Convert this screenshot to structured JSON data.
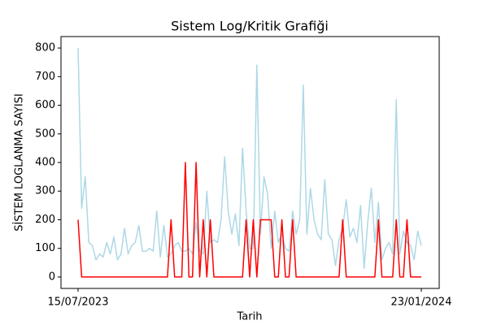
{
  "chart_data": {
    "type": "line",
    "title": "Sistem Log/Kritik Grafiği",
    "x_label": "Tarih",
    "y_label": "SİSTEM LOGLANMA SAYISI",
    "categories": [
      "15/07/2023",
      null,
      null,
      null,
      null,
      null,
      null,
      null,
      null,
      null,
      null,
      null,
      null,
      null,
      null,
      null,
      null,
      null,
      null,
      null,
      null,
      null,
      null,
      null,
      null,
      null,
      null,
      null,
      null,
      null,
      null,
      null,
      null,
      null,
      null,
      null,
      null,
      null,
      null,
      null,
      null,
      null,
      null,
      null,
      null,
      null,
      null,
      null,
      null,
      null,
      null,
      null,
      null,
      null,
      null,
      null,
      null,
      null,
      null,
      null,
      null,
      null,
      null,
      null,
      null,
      null,
      null,
      null,
      null,
      null,
      null,
      null,
      null,
      null,
      null,
      null,
      null,
      null,
      null,
      null,
      null,
      null,
      null,
      null,
      null,
      null,
      null,
      null,
      null,
      null,
      null,
      null,
      null,
      null,
      null,
      null,
      "23/01/2024"
    ],
    "series": [
      {
        "color": "#add8e6",
        "values": [
          800,
          240,
          350,
          120,
          110,
          60,
          80,
          70,
          120,
          80,
          140,
          60,
          80,
          170,
          80,
          110,
          120,
          180,
          90,
          90,
          100,
          90,
          230,
          70,
          180,
          70,
          80,
          110,
          120,
          90,
          90,
          100,
          80,
          190,
          90,
          80,
          300,
          120,
          130,
          120,
          200,
          420,
          230,
          150,
          220,
          110,
          450,
          230,
          100,
          100,
          740,
          150,
          350,
          290,
          100,
          230,
          120,
          150,
          100,
          90,
          230,
          150,
          200,
          670,
          150,
          310,
          200,
          150,
          130,
          340,
          150,
          130,
          40,
          130,
          170,
          270,
          140,
          170,
          120,
          250,
          30,
          190,
          310,
          120,
          260,
          60,
          100,
          120,
          80,
          620,
          80,
          160,
          120,
          110,
          60,
          160,
          110
        ]
      },
      {
        "color": "#ff0000",
        "values": [
          200,
          0,
          0,
          0,
          0,
          0,
          0,
          0,
          0,
          0,
          0,
          0,
          0,
          0,
          0,
          0,
          0,
          0,
          0,
          0,
          0,
          0,
          0,
          0,
          0,
          0,
          200,
          0,
          0,
          0,
          400,
          0,
          0,
          400,
          0,
          200,
          0,
          200,
          0,
          0,
          0,
          0,
          0,
          0,
          0,
          0,
          0,
          200,
          0,
          200,
          0,
          200,
          200,
          200,
          200,
          0,
          0,
          200,
          0,
          0,
          200,
          0,
          0,
          0,
          0,
          0,
          0,
          0,
          0,
          0,
          0,
          0,
          0,
          0,
          200,
          0,
          0,
          0,
          0,
          0,
          0,
          0,
          0,
          0,
          200,
          0,
          0,
          0,
          0,
          200,
          0,
          0,
          200,
          0,
          0,
          0,
          0
        ]
      }
    ],
    "ylim": [
      -40,
      840
    ],
    "yticks": [
      0,
      100,
      200,
      300,
      400,
      500,
      600,
      700,
      800
    ]
  }
}
